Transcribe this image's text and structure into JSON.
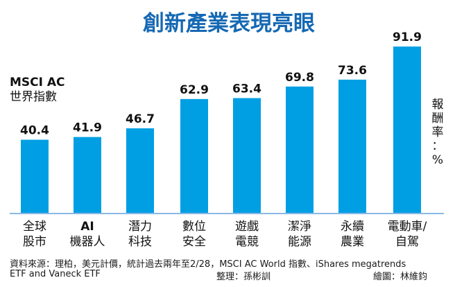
{
  "chart_data": {
    "type": "bar",
    "title": "創新產業表現亮眼",
    "series_label_lines": [
      "MSCI AC",
      "世界指數"
    ],
    "ylabel_chars": [
      "報",
      "酬",
      "率",
      "：",
      "%"
    ],
    "categories": [
      [
        "全球",
        "股市"
      ],
      [
        "AI",
        "機器人"
      ],
      [
        "潛力",
        "科技"
      ],
      [
        "數位",
        "安全"
      ],
      [
        "遊戲",
        "電競"
      ],
      [
        "潔淨",
        "能源"
      ],
      [
        "永續",
        "農業"
      ],
      [
        "電動車/",
        "自駕"
      ]
    ],
    "values": [
      40.4,
      41.9,
      46.7,
      62.9,
      63.4,
      69.8,
      73.6,
      91.9
    ],
    "value_labels": [
      "40.4",
      "41.9",
      "46.7",
      "62.9",
      "63.4",
      "69.8",
      "73.6",
      "91.9"
    ],
    "ylim": [
      0,
      100
    ],
    "bar_color": "#009fe3",
    "title_color": "#1568b3",
    "baseline_color": "#8ab8e6"
  },
  "footer": {
    "source_line1": "資料來源：理柏，美元計價，統計過去兩年至2/28，MSCI AC World 指數、iShares megatrends",
    "source_line2": "ETF and Vaneck ETF",
    "editor": "整理：孫彬訓",
    "illustrator": "繪圖：林維鈞"
  }
}
